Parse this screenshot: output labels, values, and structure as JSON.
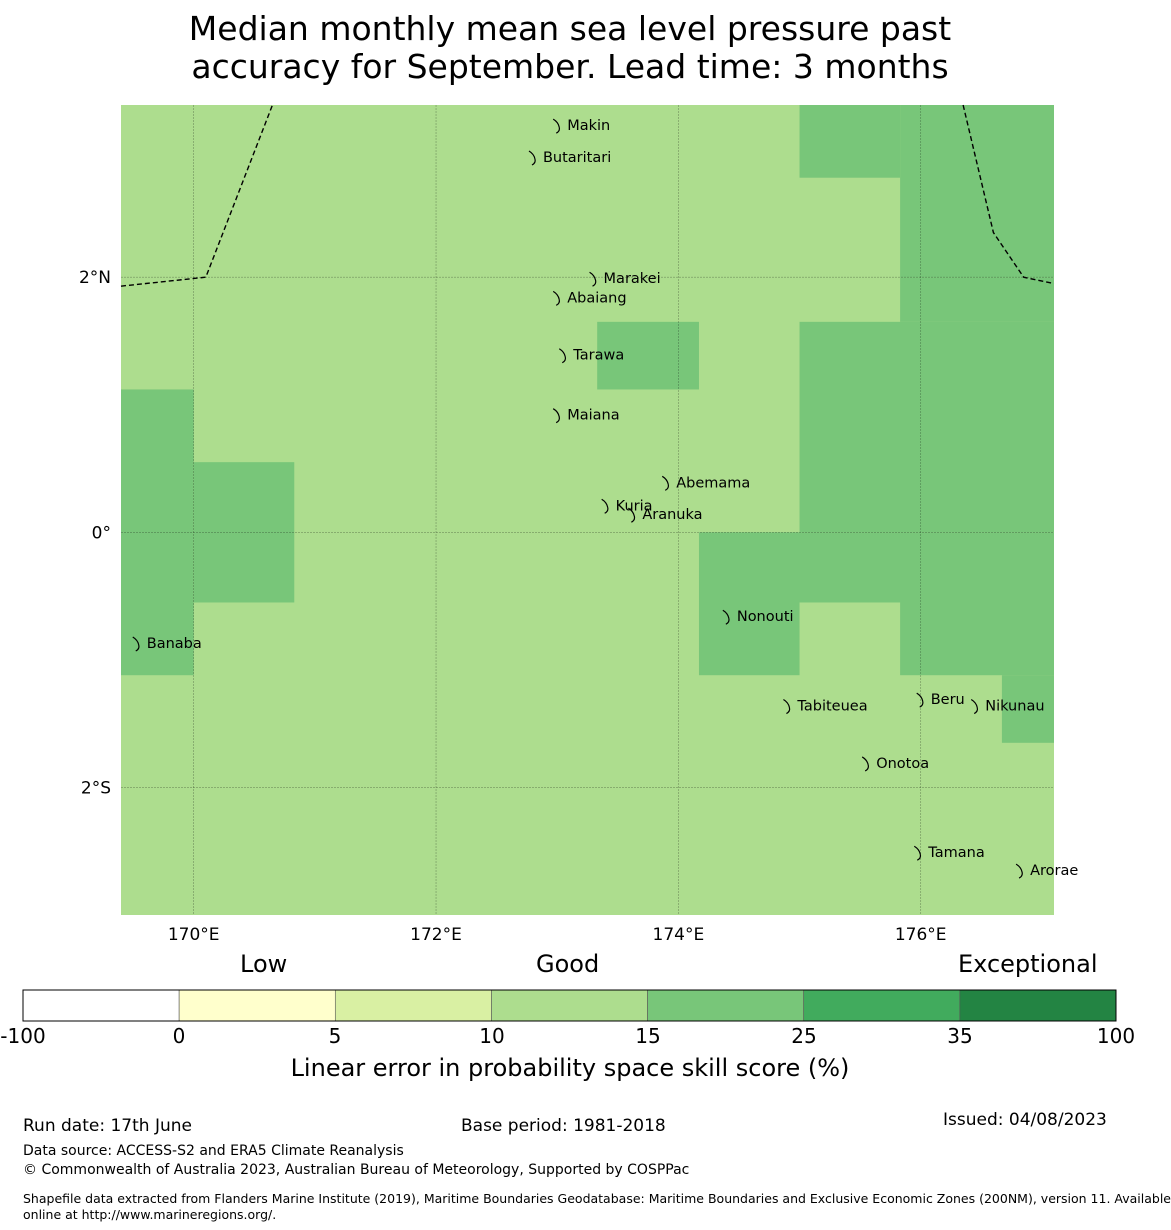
{
  "title_lines": [
    "Median monthly mean sea level pressure past",
    "accuracy for September. Lead time: 3 months"
  ],
  "map": {
    "lon_range": [
      169.4,
      177.1
    ],
    "lat_range": [
      -3.0,
      3.35
    ],
    "lon_ticks": [
      {
        "value": 170,
        "label": "170°E"
      },
      {
        "value": 172,
        "label": "172°E"
      },
      {
        "value": 174,
        "label": "174°E"
      },
      {
        "value": 176,
        "label": "176°E"
      }
    ],
    "lat_ticks": [
      {
        "value": 2,
        "label": "2°N"
      },
      {
        "value": 0,
        "label": "0°"
      },
      {
        "value": -2,
        "label": "2°S"
      }
    ],
    "background_class": "10-15",
    "cells_15_25": [
      {
        "lon": [
          175.83,
          177.1
        ],
        "lat": [
          2.0,
          3.35
        ]
      },
      {
        "lon": [
          175.0,
          175.83
        ],
        "lat": [
          2.78,
          3.35
        ]
      },
      {
        "lon": [
          175.0,
          177.1
        ],
        "lat": [
          0.0,
          1.65
        ]
      },
      {
        "lon": [
          175.83,
          177.1
        ],
        "lat": [
          1.65,
          2.0
        ]
      },
      {
        "lon": [
          173.33,
          174.17
        ],
        "lat": [
          1.12,
          1.65
        ]
      },
      {
        "lon": [
          169.4,
          170.0
        ],
        "lat": [
          -1.12,
          1.12
        ]
      },
      {
        "lon": [
          170.0,
          170.83
        ],
        "lat": [
          -0.55,
          0.55
        ]
      },
      {
        "lon": [
          174.17,
          177.1
        ],
        "lat": [
          -0.55,
          0.0
        ]
      },
      {
        "lon": [
          174.17,
          175.0
        ],
        "lat": [
          -1.12,
          -0.55
        ]
      },
      {
        "lon": [
          175.83,
          177.1
        ],
        "lat": [
          -1.12,
          -0.55
        ]
      },
      {
        "lon": [
          176.67,
          177.1
        ],
        "lat": [
          -1.65,
          -1.12
        ]
      }
    ],
    "boundaries": [
      [
        [
          169.4,
          1.93
        ],
        [
          170.1,
          2.0
        ],
        [
          170.65,
          3.35
        ]
      ],
      [
        [
          176.35,
          3.35
        ],
        [
          176.6,
          2.35
        ],
        [
          176.85,
          2.0
        ],
        [
          177.1,
          1.95
        ]
      ]
    ],
    "islands": [
      {
        "name": "Makin",
        "lon": 173.0,
        "lat": 3.2
      },
      {
        "name": "Butaritari",
        "lon": 172.8,
        "lat": 2.95
      },
      {
        "name": "Marakei",
        "lon": 173.3,
        "lat": 2.0
      },
      {
        "name": "Abaiang",
        "lon": 173.0,
        "lat": 1.85
      },
      {
        "name": "Tarawa",
        "lon": 173.05,
        "lat": 1.4
      },
      {
        "name": "Maiana",
        "lon": 173.0,
        "lat": 0.93
      },
      {
        "name": "Abemama",
        "lon": 173.9,
        "lat": 0.4
      },
      {
        "name": "Kuria",
        "lon": 173.4,
        "lat": 0.22
      },
      {
        "name": "Aranuka",
        "lon": 173.62,
        "lat": 0.15
      },
      {
        "name": "Nonouti",
        "lon": 174.4,
        "lat": -0.65
      },
      {
        "name": "Banaba",
        "lon": 169.53,
        "lat": -0.86
      },
      {
        "name": "Tabiteuea",
        "lon": 174.9,
        "lat": -1.35
      },
      {
        "name": "Beru",
        "lon": 176.0,
        "lat": -1.3
      },
      {
        "name": "Nikunau",
        "lon": 176.45,
        "lat": -1.35
      },
      {
        "name": "Onotoa",
        "lon": 175.55,
        "lat": -1.8
      },
      {
        "name": "Tamana",
        "lon": 175.98,
        "lat": -2.5
      },
      {
        "name": "Arorae",
        "lon": 176.82,
        "lat": -2.64
      }
    ]
  },
  "colorbar": {
    "category_labels": [
      "Low",
      "Good",
      "Exceptional"
    ],
    "ticks": [
      "-100",
      "0",
      "5",
      "10",
      "15",
      "25",
      "35",
      "100"
    ],
    "colors": [
      "#ffffff",
      "#ffffcc",
      "#d9f0a3",
      "#addd8e",
      "#78c679",
      "#41ab5d",
      "#238443"
    ],
    "title": "Linear error in probability space skill score (%)"
  },
  "footer": {
    "run_date": "Run date: 17th June",
    "base_period": "Base period: 1981-2018",
    "issued": "Issued: 04/08/2023",
    "data_source": "Data source: ACCESS-S2 and ERA5 Climate Reanalysis",
    "copyright": "© Commonwealth of Australia 2023, Australian Bureau of Meteorology, Supported by COSPPac",
    "shapefile_line1": "Shapefile data extracted from Flanders Marine Institute (2019), Maritime Boundaries Geodatabase: Maritime Boundaries and Exclusive Economic Zones (200NM), version 11. Available",
    "shapefile_line2": "online at http://www.marineregions.org/."
  }
}
